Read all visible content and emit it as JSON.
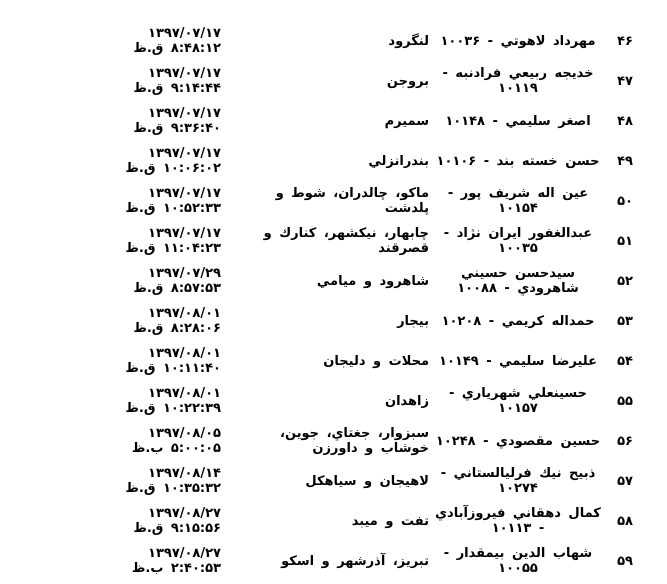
{
  "page": {
    "direction": "rtl",
    "language": "fa"
  },
  "colors": {
    "background": "#ffffff",
    "text": "#000000"
  },
  "table": {
    "row_count": 14,
    "first_row_number": "۴۶",
    "last_row_number": "۵۹",
    "rows": [
      {
        "no": "۴۶",
        "name": "مهرداد لاهوتي - ۱۰۰۳۶",
        "constituency": "لنگرود",
        "date": "۱۳۹۷/۰۷/۱۷",
        "time": "۸:۴۸:۱۲ ق.ظ"
      },
      {
        "no": "۴۷",
        "name": "خديجه ربيعي فرادنبه - ۱۰۱۱۹",
        "constituency": "بروجن",
        "date": "۱۳۹۷/۰۷/۱۷",
        "time": "۹:۱۴:۴۴ ق.ظ"
      },
      {
        "no": "۴۸",
        "name": "اصغر سليمي - ۱۰۱۴۸",
        "constituency": "سميرم",
        "date": "۱۳۹۷/۰۷/۱۷",
        "time": "۹:۳۶:۴۰ ق.ظ"
      },
      {
        "no": "۴۹",
        "name": "حسن خسته بند - ۱۰۱۰۶",
        "constituency": "بندرانزلي",
        "date": "۱۳۹۷/۰۷/۱۷",
        "time": "۱۰:۰۶:۰۲ ق.ظ"
      },
      {
        "no": "۵۰",
        "name": "عين اله شريف پور - ۱۰۱۵۴",
        "constituency": "ماكو، چالدران، شوط و پلدشت",
        "date": "۱۳۹۷/۰۷/۱۷",
        "time": "۱۰:۵۲:۳۳ ق.ظ"
      },
      {
        "no": "۵۱",
        "name": "عبدالغفور ايران نژاد - ۱۰۰۳۵",
        "constituency": "چابهار، نيكشهر، كنارك و قصرقند",
        "date": "۱۳۹۷/۰۷/۱۷",
        "time": "۱۱:۰۴:۲۳ ق.ظ"
      },
      {
        "no": "۵۲",
        "name": "سيدحسن حسيني شاهرودي - ۱۰۰۸۸",
        "constituency": "شاهرود و ميامي",
        "date": "۱۳۹۷/۰۷/۲۹",
        "time": "۸:۵۷:۵۳ ق.ظ"
      },
      {
        "no": "۵۳",
        "name": "حمداله كريمي - ۱۰۲۰۸",
        "constituency": "بيجار",
        "date": "۱۳۹۷/۰۸/۰۱",
        "time": "۸:۲۸:۰۶ ق.ظ"
      },
      {
        "no": "۵۴",
        "name": "عليرضا سليمي - ۱۰۱۴۹",
        "constituency": "محلات و دليجان",
        "date": "۱۳۹۷/۰۸/۰۱",
        "time": "۱۰:۱۱:۴۰ ق.ظ"
      },
      {
        "no": "۵۵",
        "name": "حسينعلي شهرياري - ۱۰۱۵۷",
        "constituency": "زاهدان",
        "date": "۱۳۹۷/۰۸/۰۱",
        "time": "۱۰:۲۲:۳۹ ق.ظ"
      },
      {
        "no": "۵۶",
        "name": "حسين مقصودي - ۱۰۲۴۸",
        "constituency": "سبزوار، جغتاي، جوين، خوشاب و داورزن",
        "date": "۱۳۹۷/۰۸/۰۵",
        "time": "۵:۰۰:۰۵ ب.ظ"
      },
      {
        "no": "۵۷",
        "name": "ذبيح نيك فرليالستاني - ۱۰۲۷۴",
        "constituency": "لاهيجان و سياهكل",
        "date": "۱۳۹۷/۰۸/۱۴",
        "time": "۱۰:۳۵:۳۲ ق.ظ"
      },
      {
        "no": "۵۸",
        "name": "كمال دهقاني فيروزآبادي - ۱۰۱۱۳",
        "constituency": "تفت و ميبد",
        "date": "۱۳۹۷/۰۸/۲۷",
        "time": "۹:۱۵:۵۶ ق.ظ"
      },
      {
        "no": "۵۹",
        "name": "شهاب الدين بيمقدار - ۱۰۰۵۵",
        "constituency": "تبريز، آذرشهر و اسكو",
        "date": "۱۳۹۷/۰۸/۲۷",
        "time": "۲:۴۰:۵۳ ب.ظ"
      }
    ]
  }
}
